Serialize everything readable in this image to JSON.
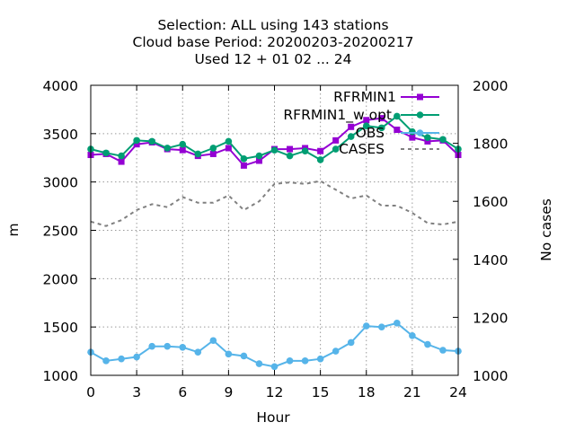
{
  "chart_data": {
    "type": "line",
    "title_lines": [
      "Selection: ALL using   143 stations",
      "Cloud base   Period: 20200203-20200217",
      "Used  12 + 01 02 ... 24"
    ],
    "xlabel": "Hour",
    "ylabel": "m",
    "y2label": "No cases",
    "xlim": [
      0,
      24
    ],
    "ylim": [
      1000,
      4000
    ],
    "y2lim": [
      1000,
      2000
    ],
    "xticks": [
      0,
      3,
      6,
      9,
      12,
      15,
      18,
      21,
      24
    ],
    "yticks": [
      1000,
      1500,
      2000,
      2500,
      3000,
      3500,
      4000
    ],
    "y2ticks": [
      1000,
      1200,
      1400,
      1600,
      1800,
      2000
    ],
    "grid": true,
    "legend_position": "top-right",
    "x": [
      0,
      1,
      2,
      3,
      4,
      5,
      6,
      7,
      8,
      9,
      10,
      11,
      12,
      13,
      14,
      15,
      16,
      17,
      18,
      19,
      20,
      21,
      22,
      23,
      24
    ],
    "series": [
      {
        "name": "RFRMIN1",
        "color": "#9400d3",
        "marker": "square",
        "axis": "y",
        "values": [
          3280,
          3290,
          3210,
          3390,
          3410,
          3340,
          3330,
          3270,
          3290,
          3350,
          3170,
          3220,
          3340,
          3340,
          3350,
          3320,
          3430,
          3570,
          3640,
          3660,
          3540,
          3460,
          3420,
          3430,
          3280
        ]
      },
      {
        "name": "RFRMIN1_w opt",
        "color": "#009e73",
        "marker": "circle",
        "axis": "y",
        "values": [
          3340,
          3300,
          3270,
          3430,
          3420,
          3350,
          3390,
          3290,
          3350,
          3420,
          3240,
          3270,
          3330,
          3270,
          3320,
          3230,
          3340,
          3470,
          3580,
          3560,
          3680,
          3520,
          3460,
          3440,
          3340
        ]
      },
      {
        "name": "OBS",
        "color": "#56b4e9",
        "marker": "circle",
        "axis": "y",
        "values": [
          1240,
          1150,
          1170,
          1190,
          1300,
          1300,
          1290,
          1240,
          1360,
          1220,
          1200,
          1120,
          1090,
          1150,
          1150,
          1170,
          1250,
          1340,
          1510,
          1500,
          1540,
          1410,
          1320,
          1260,
          1250
        ]
      },
      {
        "name": "CASES",
        "color": "#808080",
        "dashed": true,
        "axis": "y2",
        "values": [
          1530,
          1515,
          1535,
          1570,
          1590,
          1580,
          1615,
          1595,
          1595,
          1620,
          1570,
          1600,
          1660,
          1665,
          1660,
          1670,
          1640,
          1610,
          1620,
          1585,
          1585,
          1560,
          1525,
          1520,
          1530
        ]
      }
    ]
  }
}
